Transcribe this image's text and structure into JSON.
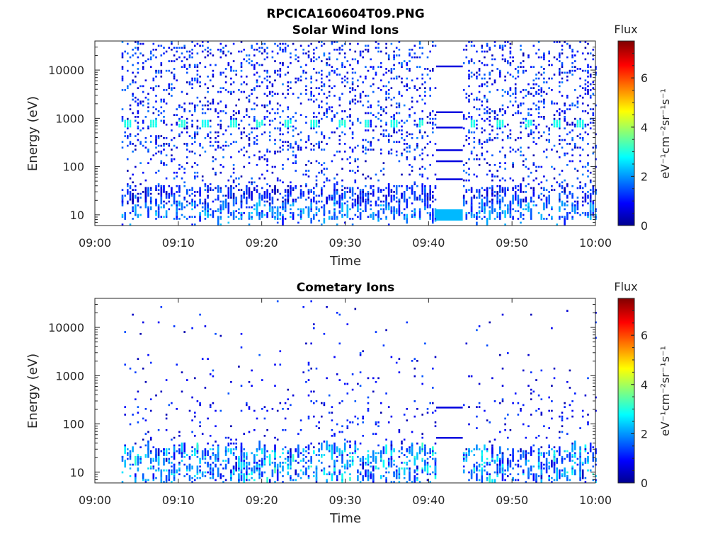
{
  "figure": {
    "title": "RPCICA160604T09.PNG"
  },
  "chart_data": [
    {
      "type": "heatmap",
      "title": "Solar Wind Ions",
      "xlabel": "Time",
      "ylabel": "Energy (eV)",
      "xticks": [
        "09:00",
        "09:10",
        "09:20",
        "09:30",
        "09:40",
        "09:50",
        "10:00"
      ],
      "xlim_minutes": [
        0,
        60
      ],
      "yscale": "log",
      "ylim": [
        6,
        40000
      ],
      "yticks": [
        "10",
        "100",
        "1000",
        "10000"
      ],
      "colorbar": {
        "label": "Flux",
        "units_label": "eV⁻¹cm⁻²sr⁻¹s⁻¹",
        "range": [
          0,
          7.5
        ],
        "ticks": [
          "0",
          "2",
          "4",
          "6"
        ],
        "colormap": "jet"
      },
      "features": {
        "flux_peak_energy_eV": 750,
        "peak_flux": 2.8,
        "peak_times_minutes": [
          3.7,
          7,
          10.2,
          13.2,
          16.5,
          19.7,
          23,
          26.2,
          29.5,
          32.5,
          35.8,
          39,
          45.2,
          48.5,
          52,
          55.2,
          58.2
        ],
        "gap_minutes": [
          40.9,
          44.1
        ],
        "gap_energy_lines_eV": [
          12000,
          1350,
          650,
          220,
          130,
          55,
          10
        ]
      }
    },
    {
      "type": "heatmap",
      "title": "Cometary Ions",
      "xlabel": "Time",
      "ylabel": "Energy (eV)",
      "xticks": [
        "09:00",
        "09:10",
        "09:20",
        "09:30",
        "09:40",
        "09:50",
        "10:00"
      ],
      "xlim_minutes": [
        0,
        60
      ],
      "yscale": "log",
      "ylim": [
        6,
        40000
      ],
      "yticks": [
        "10",
        "100",
        "1000",
        "10000"
      ],
      "colorbar": {
        "label": "Flux",
        "units_label": "eV⁻¹cm⁻²sr⁻¹s⁻¹",
        "range": [
          0,
          7.5
        ],
        "ticks": [
          "0",
          "2",
          "4",
          "6"
        ],
        "colormap": "jet"
      },
      "features": {
        "low_energy_band_eV": [
          6,
          30
        ],
        "gap_minutes": [
          40.9,
          44.1
        ],
        "gap_energy_lines_eV": [
          220,
          52
        ]
      }
    }
  ]
}
